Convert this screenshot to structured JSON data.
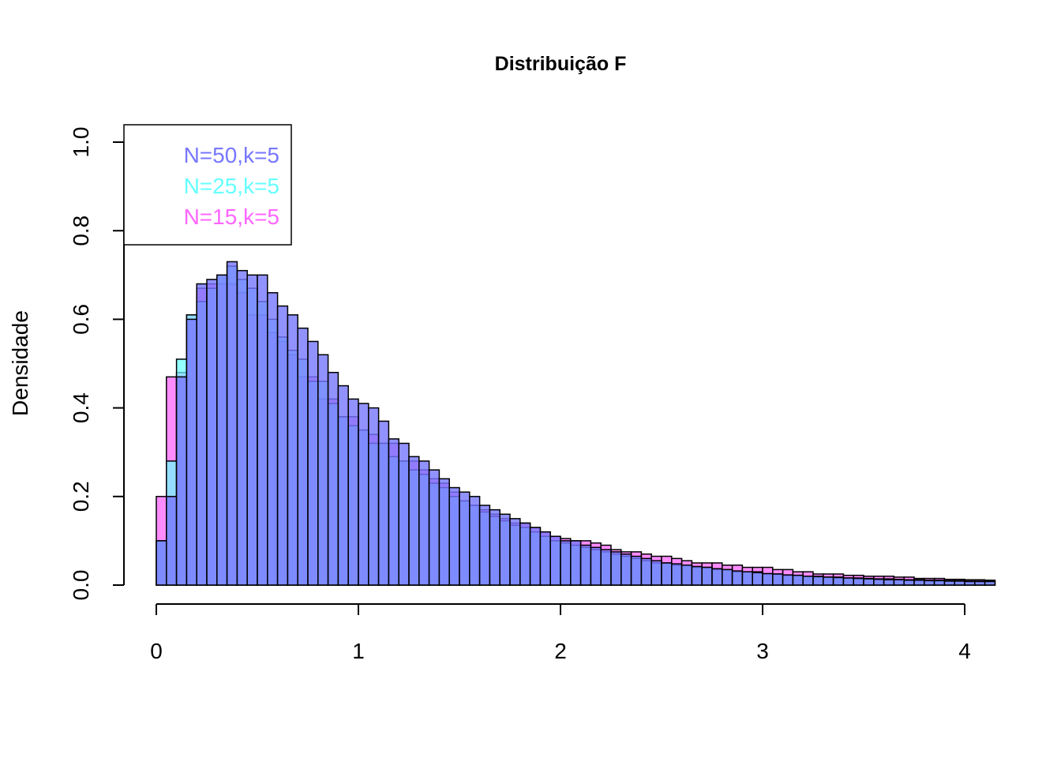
{
  "chart_data": {
    "type": "bar",
    "subtype": "overlaid-histogram",
    "title": "Distribuição F",
    "xlabel": "",
    "ylabel": "Densidade",
    "xlim": [
      0,
      4.17
    ],
    "ylim": [
      0,
      1.0
    ],
    "bin_width": 0.05,
    "x_start": 0,
    "x_ticks": [
      "0",
      "1",
      "2",
      "3",
      "4"
    ],
    "x_tick_values": [
      0,
      1,
      2,
      3,
      4
    ],
    "y_ticks": [
      "0.0",
      "0.2",
      "0.4",
      "0.6",
      "0.8",
      "1.0"
    ],
    "y_tick_values": [
      0,
      0.2,
      0.4,
      0.6,
      0.8,
      1.0
    ],
    "grid": false,
    "legend_position": "top-left",
    "series": [
      {
        "name": "N=15,k=5",
        "color": "#FF66FF",
        "fill_opacity": 0.75,
        "values": [
          0.2,
          0.47,
          0.48,
          0.61,
          0.67,
          0.68,
          0.68,
          0.68,
          0.66,
          0.61,
          0.61,
          0.57,
          0.55,
          0.52,
          0.47,
          0.47,
          0.42,
          0.42,
          0.38,
          0.38,
          0.35,
          0.34,
          0.32,
          0.32,
          0.28,
          0.28,
          0.26,
          0.24,
          0.23,
          0.21,
          0.19,
          0.18,
          0.17,
          0.16,
          0.15,
          0.14,
          0.14,
          0.13,
          0.12,
          0.11,
          0.105,
          0.1,
          0.1,
          0.095,
          0.09,
          0.08,
          0.075,
          0.075,
          0.07,
          0.065,
          0.065,
          0.06,
          0.055,
          0.05,
          0.05,
          0.05,
          0.045,
          0.045,
          0.04,
          0.04,
          0.04,
          0.035,
          0.035,
          0.03,
          0.03,
          0.025,
          0.025,
          0.025,
          0.022,
          0.022,
          0.02,
          0.02,
          0.02,
          0.018,
          0.018,
          0.015,
          0.015,
          0.015,
          0.013,
          0.013,
          0.012,
          0.012,
          0.011
        ]
      },
      {
        "name": "N=25,k=5",
        "color": "#66FFFF",
        "fill_opacity": 0.7,
        "values": [
          0.1,
          0.28,
          0.51,
          0.61,
          0.64,
          0.67,
          0.7,
          0.72,
          0.69,
          0.67,
          0.64,
          0.6,
          0.56,
          0.53,
          0.51,
          0.46,
          0.46,
          0.41,
          0.38,
          0.36,
          0.35,
          0.32,
          0.32,
          0.29,
          0.28,
          0.26,
          0.25,
          0.23,
          0.22,
          0.2,
          0.19,
          0.18,
          0.165,
          0.155,
          0.145,
          0.135,
          0.13,
          0.12,
          0.11,
          0.1,
          0.095,
          0.09,
          0.085,
          0.08,
          0.075,
          0.07,
          0.065,
          0.06,
          0.055,
          0.05,
          0.05,
          0.045,
          0.045,
          0.04,
          0.04,
          0.035,
          0.035,
          0.03,
          0.03,
          0.03,
          0.025,
          0.025,
          0.022,
          0.022,
          0.02,
          0.02,
          0.018,
          0.018,
          0.016,
          0.016,
          0.015,
          0.014,
          0.014,
          0.013,
          0.012,
          0.012,
          0.011,
          0.011,
          0.01,
          0.01,
          0.009,
          0.009,
          0.009
        ]
      },
      {
        "name": "N=50,k=5",
        "color": "#7777FF",
        "fill_opacity": 0.8,
        "values": [
          0.1,
          0.2,
          0.47,
          0.6,
          0.68,
          0.69,
          0.7,
          0.73,
          0.71,
          0.7,
          0.7,
          0.66,
          0.63,
          0.61,
          0.58,
          0.55,
          0.52,
          0.48,
          0.45,
          0.42,
          0.41,
          0.4,
          0.37,
          0.33,
          0.32,
          0.29,
          0.28,
          0.26,
          0.24,
          0.22,
          0.21,
          0.2,
          0.18,
          0.17,
          0.16,
          0.15,
          0.14,
          0.13,
          0.12,
          0.11,
          0.1,
          0.1,
          0.09,
          0.085,
          0.08,
          0.075,
          0.07,
          0.065,
          0.06,
          0.055,
          0.05,
          0.048,
          0.045,
          0.042,
          0.04,
          0.037,
          0.035,
          0.032,
          0.03,
          0.028,
          0.026,
          0.025,
          0.023,
          0.022,
          0.02,
          0.019,
          0.018,
          0.017,
          0.016,
          0.015,
          0.014,
          0.013,
          0.012,
          0.012,
          0.011,
          0.011,
          0.01,
          0.01,
          0.009,
          0.009,
          0.008,
          0.008,
          0.008
        ]
      }
    ]
  }
}
